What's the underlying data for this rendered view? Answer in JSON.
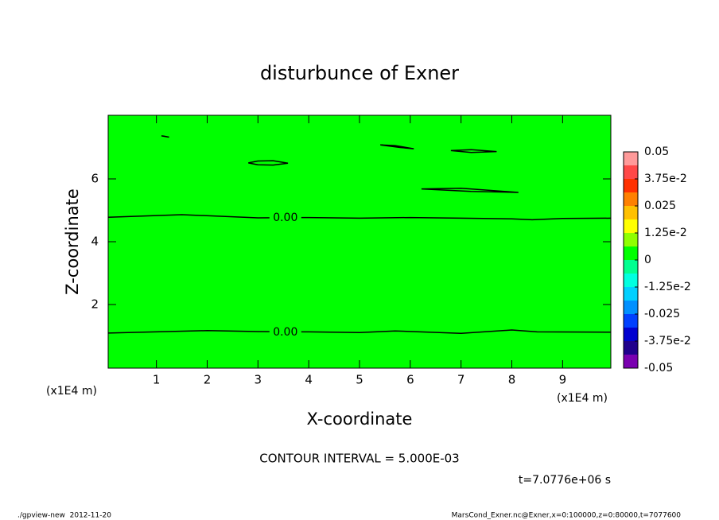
{
  "chart_data": {
    "type": "contour",
    "title": "disturbunce of Exner",
    "x_label": "X-coordinate",
    "y_label": "Z-coordinate",
    "x_unit": "(x1E4 m)",
    "xlim": [
      0.05,
      9.95
    ],
    "ylim": [
      0,
      8
    ],
    "xticks": [
      1,
      2,
      3,
      4,
      5,
      6,
      7,
      8,
      9
    ],
    "yticks": [
      2,
      4,
      6
    ],
    "field_color": "#00ff00",
    "contours": [
      {
        "level": 0,
        "label": "0.00",
        "label_x": 3.54,
        "label_y": 4.76,
        "x": [
          0.05,
          1.5,
          3.0,
          4.0,
          5.0,
          6.0,
          7.0,
          8.0,
          8.4,
          9.0,
          9.95
        ],
        "y": [
          4.78,
          4.86,
          4.76,
          4.77,
          4.75,
          4.77,
          4.75,
          4.73,
          4.7,
          4.74,
          4.75
        ]
      },
      {
        "level": 0,
        "label": "0.00",
        "label_x": 3.54,
        "label_y": 1.12,
        "x": [
          0.05,
          2.0,
          3.0,
          4.0,
          5.0,
          5.7,
          7.0,
          8.0,
          8.5,
          9.95
        ],
        "y": [
          1.09,
          1.17,
          1.14,
          1.13,
          1.11,
          1.16,
          1.08,
          1.19,
          1.13,
          1.12
        ]
      },
      {
        "level": 0,
        "x": [
          2.81,
          3.0,
          3.3,
          3.59,
          3.3,
          3.0,
          2.81
        ],
        "y": [
          6.51,
          6.57,
          6.58,
          6.5,
          6.44,
          6.45,
          6.51
        ]
      },
      {
        "level": 0,
        "x": [
          5.41,
          5.7,
          6.07,
          5.8,
          5.41
        ],
        "y": [
          7.08,
          7.06,
          6.96,
          7.0,
          7.08
        ]
      },
      {
        "level": 0,
        "x": [
          6.8,
          7.2,
          7.7,
          7.2,
          6.8
        ],
        "y": [
          6.9,
          6.93,
          6.87,
          6.84,
          6.9
        ]
      },
      {
        "level": 0,
        "x": [
          6.22,
          7.0,
          8.13,
          7.2,
          6.22
        ],
        "y": [
          5.68,
          5.7,
          5.57,
          5.6,
          5.68
        ]
      },
      {
        "level": 0,
        "x": [
          1.1,
          1.25,
          1.15,
          1.1
        ],
        "y": [
          7.37,
          7.33,
          7.36,
          7.37
        ]
      }
    ],
    "colorbar": {
      "lim": [
        -0.05,
        0.05
      ],
      "levels": [
        -0.05,
        -0.04375,
        -0.0375,
        -0.03125,
        -0.025,
        -0.01875,
        -0.0125,
        -0.00625,
        0,
        0.00625,
        0.0125,
        0.01875,
        0.025,
        0.03125,
        0.0375,
        0.04375,
        0.05
      ],
      "colors": [
        "#7a00b0",
        "#20008c",
        "#0000d0",
        "#0040ff",
        "#0090ff",
        "#00d0ff",
        "#00ffe0",
        "#00ff90",
        "#00ff00",
        "#90ff00",
        "#ffff00",
        "#ffc000",
        "#ff8000",
        "#ff3000",
        "#ff4848",
        "#ff9a9a"
      ],
      "ticks": [
        -0.05,
        {
          "value": -0.0375,
          "label": "-3.75e-2"
        },
        -0.025,
        {
          "value": -0.0125,
          "label": "-1.25e-2"
        },
        0,
        {
          "value": 0.0125,
          "label": "1.25e-2"
        },
        0.025,
        {
          "value": 0.0375,
          "label": "3.75e-2"
        },
        0.05
      ]
    },
    "annotations": {
      "contour_interval": "CONTOUR INTERVAL = 5.000E-03",
      "time": "t=7.0776e+06 s",
      "footer_left": "./gpview-new  2012-11-20",
      "footer_right": "MarsCond_Exner.nc@Exner,x=0:100000,z=0:80000,t=7077600"
    }
  }
}
